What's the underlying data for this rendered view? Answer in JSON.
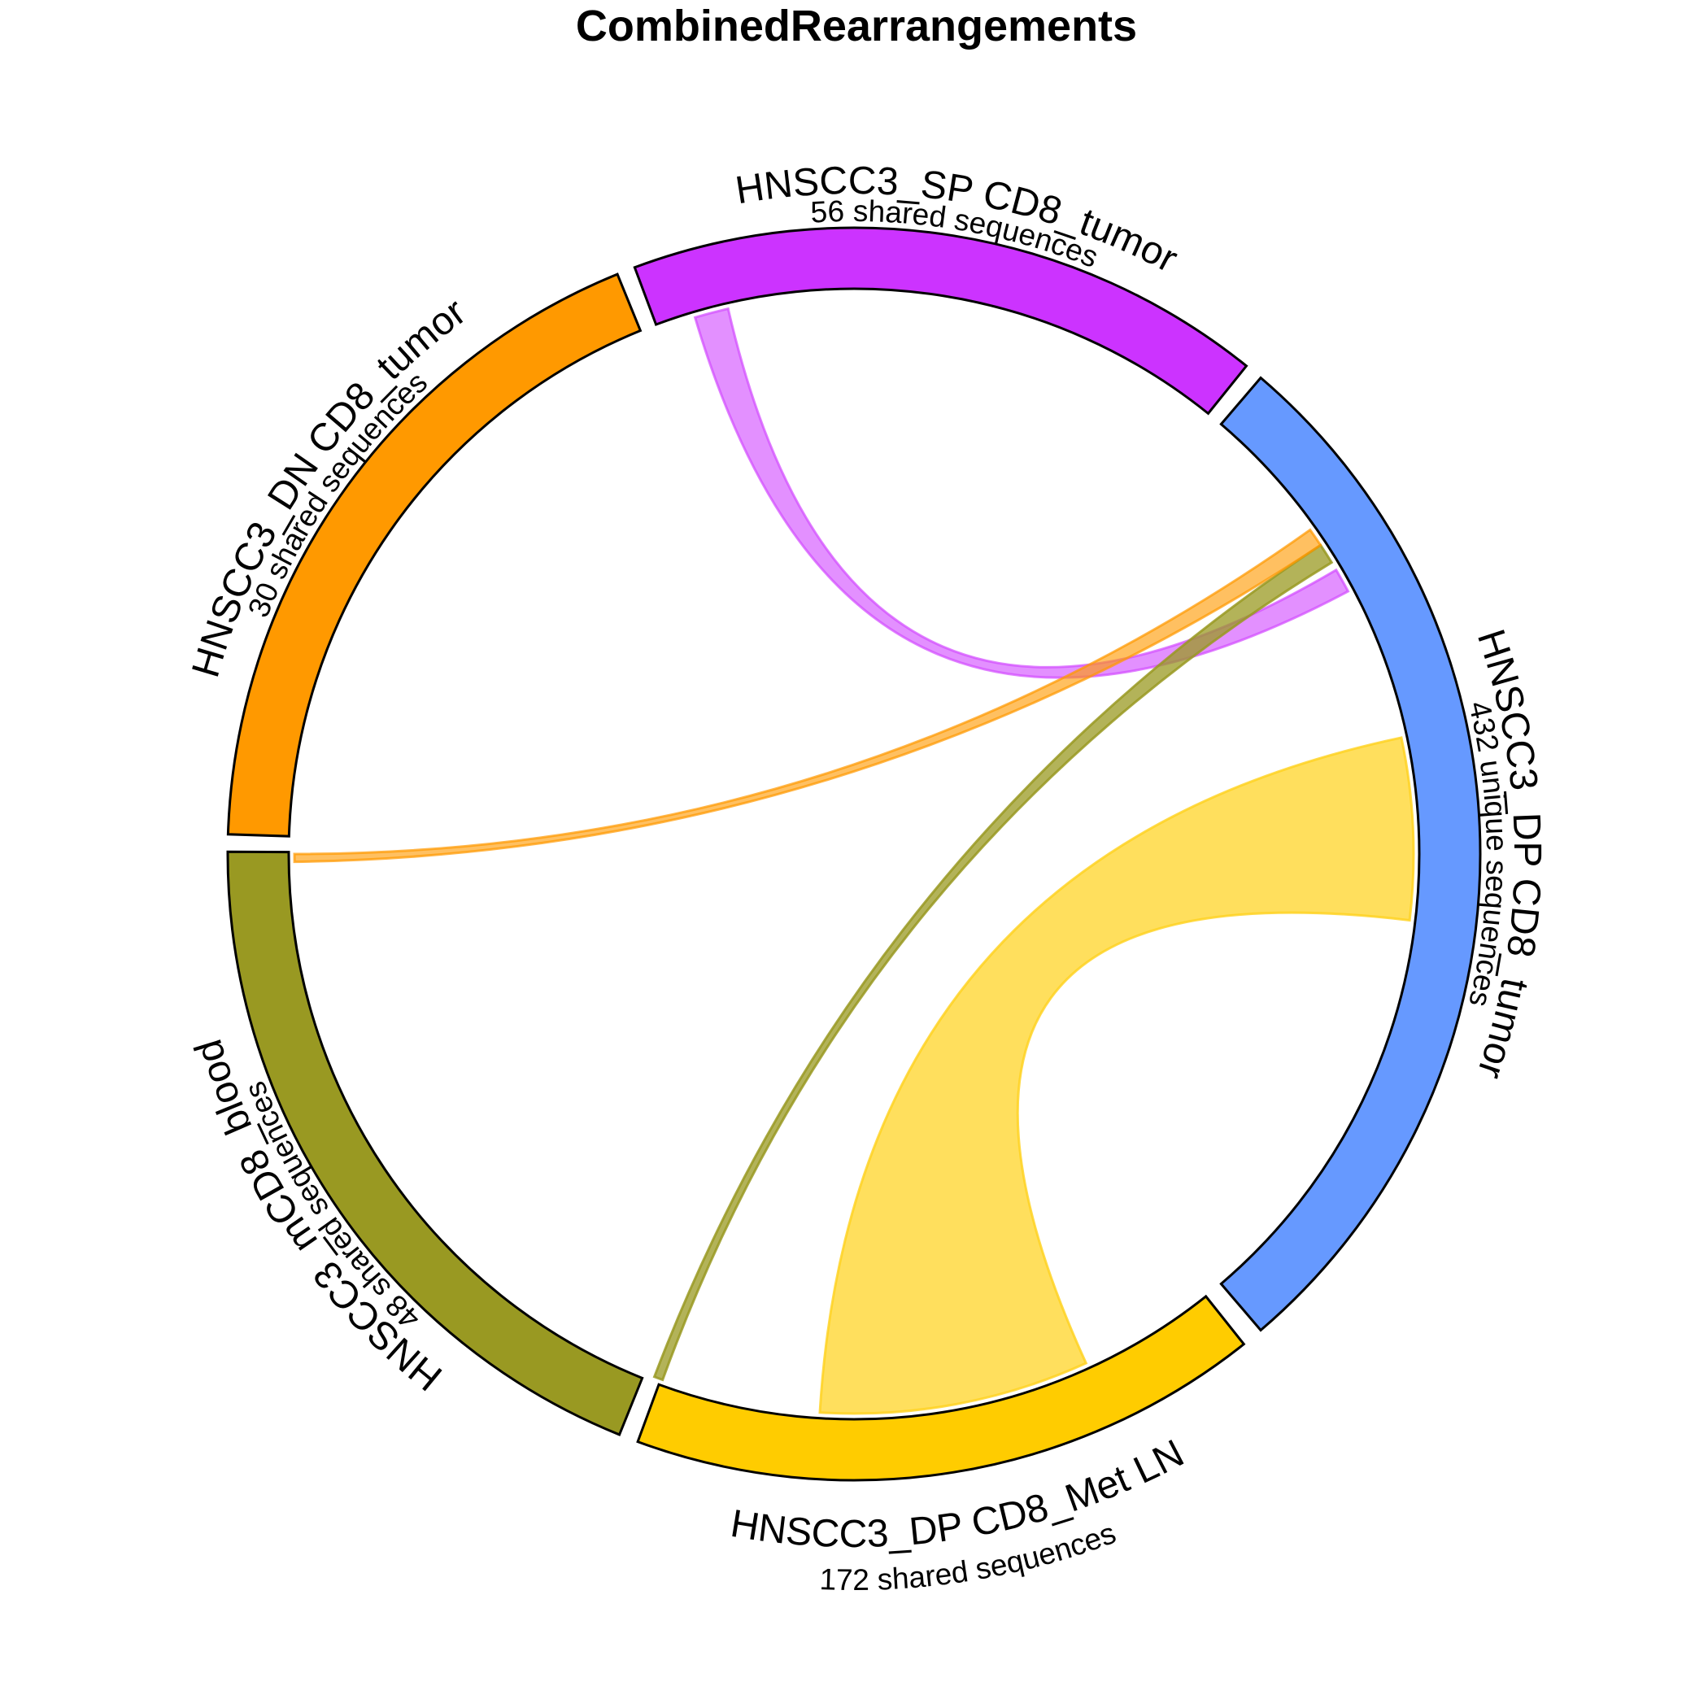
{
  "chart_data": {
    "type": "chord",
    "title": "CombinedRearrangements",
    "segments": [
      {
        "id": "dp_tumor",
        "name": "HNSCC3_DP CD8_tumor",
        "subtitle": "432 unique sequences",
        "color": "#6699FF"
      },
      {
        "id": "dp_metln",
        "name": "HNSCC3_DP CD8_Met LN",
        "subtitle": "172 shared sequences",
        "color": "#FFCC00"
      },
      {
        "id": "mcd8_blood",
        "name": "HNSCC3_mCD8_blood",
        "subtitle": "48 shared sequences",
        "color": "#999922"
      },
      {
        "id": "dn_tumor",
        "name": "HNSCC3_DN CD8_tumor",
        "subtitle": "30 shared sequences",
        "color": "#FF9900"
      },
      {
        "id": "sp_tumor",
        "name": "HNSCC3_SP CD8_tumor",
        "subtitle": "56 shared sequences",
        "color": "#CC33FF"
      }
    ],
    "links": [
      {
        "from": "dp_tumor",
        "to": "dp_metln",
        "color": "#FFD21F"
      },
      {
        "from": "dp_tumor",
        "to": "sp_tumor",
        "color": "#D24CFF"
      },
      {
        "from": "dp_tumor",
        "to": "mcd8_blood",
        "color": "#999922"
      },
      {
        "from": "dp_tumor",
        "to": "dn_tumor",
        "color": "#FF9900"
      }
    ]
  }
}
